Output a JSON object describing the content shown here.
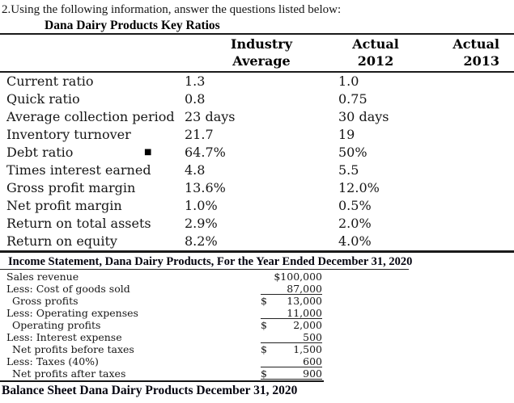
{
  "question": "2.Using the following information, answer the questions listed below:",
  "ratios": {
    "title": "Dana Dairy Products Key Ratios",
    "header": {
      "industry": {
        "line1": "Industry",
        "line2": "Average"
      },
      "y2012": {
        "line1": "Actual",
        "line2": "2012"
      },
      "y2013": {
        "line1": "Actual",
        "line2": "2013"
      }
    },
    "rows": [
      {
        "name": "Current ratio",
        "marker": "",
        "industry": "1.3",
        "a2012": "1.0",
        "a2013": ""
      },
      {
        "name": "Quick ratio",
        "marker": "",
        "industry": "0.8",
        "a2012": "0.75",
        "a2013": ""
      },
      {
        "name": "Average collection period",
        "marker": "",
        "industry": "23 days",
        "a2012": "30 days",
        "a2013": ""
      },
      {
        "name": "Inventory turnover",
        "marker": "",
        "industry": "21.7",
        "a2012": "19",
        "a2013": ""
      },
      {
        "name": "Debt ratio",
        "marker": "■",
        "industry": "64.7%",
        "a2012": "50%",
        "a2013": ""
      },
      {
        "name": "Times interest earned",
        "marker": "",
        "industry": "4.8",
        "a2012": "5.5",
        "a2013": ""
      },
      {
        "name": "Gross profit margin",
        "marker": "",
        "industry": "13.6%",
        "a2012": "12.0%",
        "a2013": ""
      },
      {
        "name": "Net profit margin",
        "marker": "",
        "industry": "1.0%",
        "a2012": "0.5%",
        "a2013": ""
      },
      {
        "name": "Return on total assets",
        "marker": "",
        "industry": "2.9%",
        "a2012": "2.0%",
        "a2013": ""
      },
      {
        "name": "Return on equity",
        "marker": "",
        "industry": "8.2%",
        "a2012": "4.0%",
        "a2013": ""
      }
    ]
  },
  "income": {
    "title": "Income Statement, Dana Dairy Products, For the Year Ended December 31, 2020",
    "rows": [
      {
        "label": "Sales revenue",
        "dollar": "",
        "amount": "$100,000"
      },
      {
        "label": "Less: Cost of goods sold",
        "dollar": "",
        "amount": "87,000"
      },
      {
        "label": "Gross profits",
        "dollar": "$",
        "amount": "13,000"
      },
      {
        "label": "Less: Operating expenses",
        "dollar": "",
        "amount": "11,000"
      },
      {
        "label": "Operating profits",
        "dollar": "$",
        "amount": "2,000"
      },
      {
        "label": "Less: Interest expense",
        "dollar": "",
        "amount": "500"
      },
      {
        "label": "Net profits before taxes",
        "dollar": "$",
        "amount": "1,500"
      },
      {
        "label": "Less: Taxes (40%)",
        "dollar": "",
        "amount": "600"
      },
      {
        "label": "Net profits after taxes",
        "dollar": "$",
        "amount": "900"
      }
    ]
  },
  "balance_sheet_title": "Balance Sheet Dana Dairy Products December 31, 2020"
}
